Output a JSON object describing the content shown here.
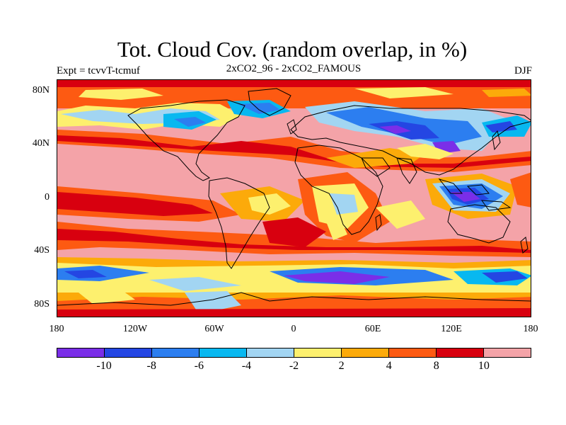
{
  "title": "Tot. Cloud Cov. (random overlap, in %)",
  "left_label": "Expt = tcvvT-tcmuf",
  "center_label": "2xCO2_96 - 2xCO2_FAMOUS",
  "right_label": "DJF",
  "lat_labels": [
    "80N",
    "40N",
    "0",
    "40S",
    "80S"
  ],
  "lon_labels": [
    "180",
    "120W",
    "60W",
    "0",
    "60E",
    "120E",
    "180"
  ],
  "colorbar": {
    "colors": [
      "#7a2ee8",
      "#2446e3",
      "#2c7ef0",
      "#08b8f0",
      "#a2d5f2",
      "#fdf06e",
      "#fcaa0a",
      "#fd5a12",
      "#d8000f",
      "#f4a3a8"
    ],
    "labels": [
      "-10",
      "-8",
      "-6",
      "-4",
      "-2",
      "2",
      "4",
      "8",
      "10"
    ]
  }
}
